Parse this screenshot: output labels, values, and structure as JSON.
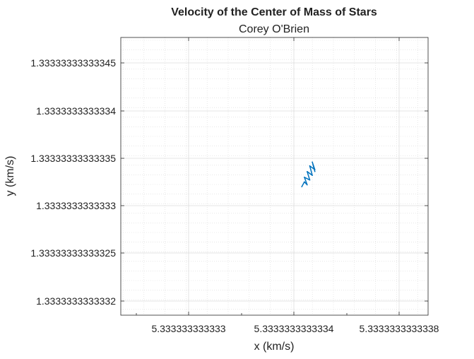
{
  "chart_data": {
    "type": "line",
    "title": "Velocity of the Center of Mass of Stars",
    "subtitle": "Corey O'Brien",
    "xlabel": "x (km/s)",
    "ylabel": "y (km/s)",
    "xticks": [
      {
        "value": 5.333333333333,
        "label": "5.333333333333"
      },
      {
        "value": 5.3333333333334,
        "label": "5.3333333333334"
      },
      {
        "value": 5.3333333333338,
        "label": "5.3333333333338"
      }
    ],
    "yticks": [
      {
        "value": 1.33333333333345,
        "label": "1.33333333333345"
      },
      {
        "value": 1.3333333333334,
        "label": "1.3333333333334"
      },
      {
        "value": 1.33333333333335,
        "label": "1.33333333333335"
      },
      {
        "value": 1.3333333333333,
        "label": "1.3333333333333"
      },
      {
        "value": 1.33333333333325,
        "label": "1.33333333333325"
      },
      {
        "value": 1.3333333333332,
        "label": "1.3333333333332"
      }
    ],
    "grid": true,
    "minor_grid": true,
    "series_color": "#0072BD",
    "series": [
      {
        "x": [
          5.33333333333343,
          5.33333333333344,
          5.33333333333345,
          5.33333333333344,
          5.33333333333346,
          5.33333333333345,
          5.33333333333347,
          5.33333333333346,
          5.33333333333348,
          5.33333333333347,
          5.33333333333348
        ],
        "y": [
          1.33333333333332,
          1.333333333333325,
          1.333333333333322,
          1.33333333333333,
          1.333333333333327,
          1.333333333333336,
          1.333333333333332,
          1.333333333333342,
          1.333333333333338,
          1.333333333333346,
          1.333333333333336
        ]
      }
    ]
  }
}
